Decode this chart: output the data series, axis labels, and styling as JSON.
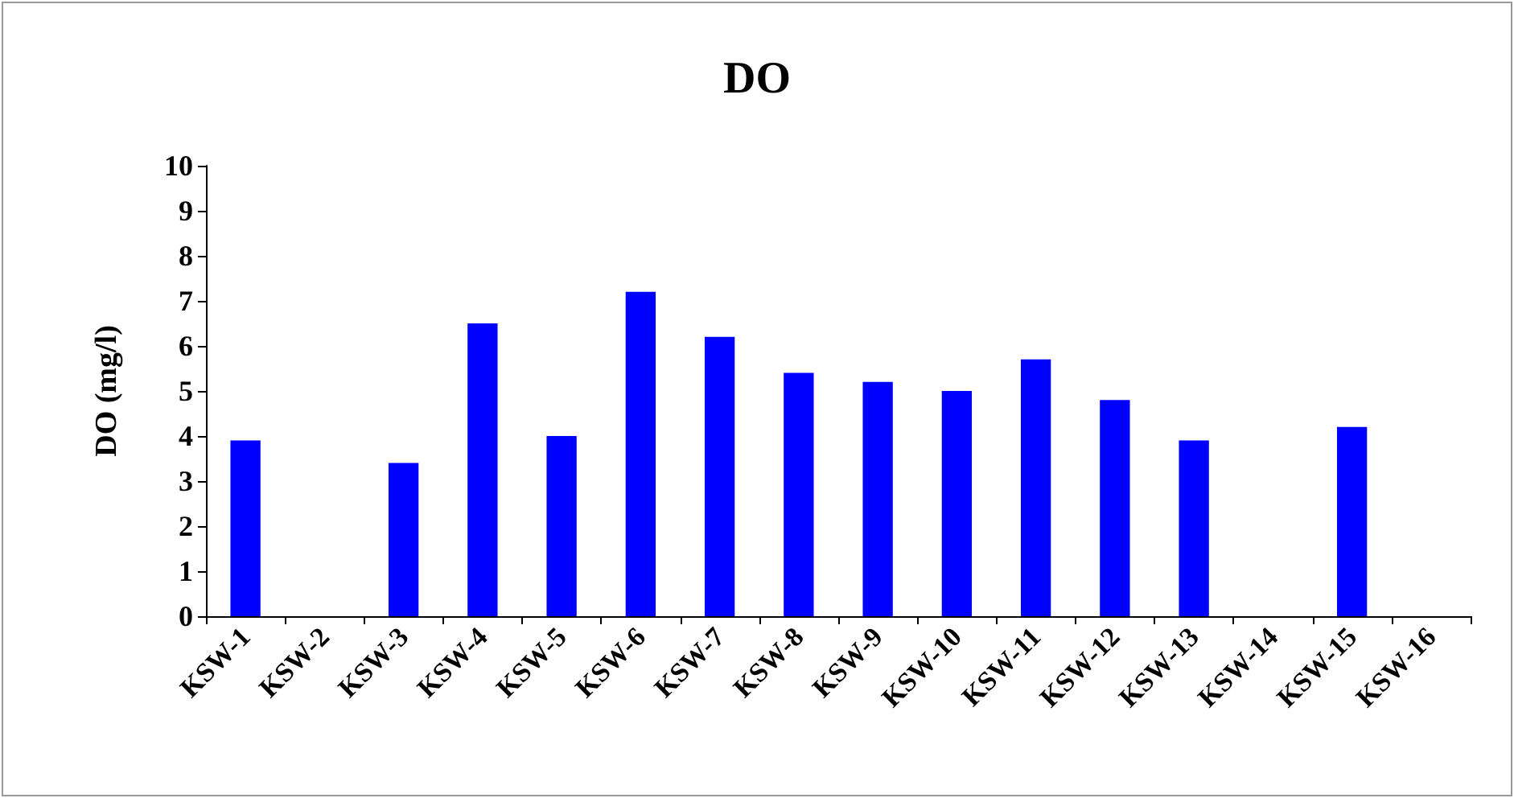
{
  "chart_data": {
    "type": "bar",
    "title": "DO",
    "ylabel": "DO (mg/l)",
    "categories": [
      "KSW-1",
      "KSW-2",
      "KSW-3",
      "KSW-4",
      "KSW-5",
      "KSW-6",
      "KSW-7",
      "KSW-8",
      "KSW-9",
      "KSW-10",
      "KSW-11",
      "KSW-12",
      "KSW-13",
      "KSW-14",
      "KSW-15",
      "KSW-16"
    ],
    "values": [
      3.9,
      null,
      3.4,
      6.5,
      4.0,
      7.2,
      6.2,
      5.4,
      5.2,
      5.0,
      5.7,
      4.8,
      3.9,
      null,
      4.2,
      null
    ],
    "color": "#0000ff",
    "ylim": [
      0,
      10
    ],
    "yticks": [
      0,
      1,
      2,
      3,
      4,
      5,
      6,
      7,
      8,
      9,
      10
    ],
    "grid": false
  }
}
